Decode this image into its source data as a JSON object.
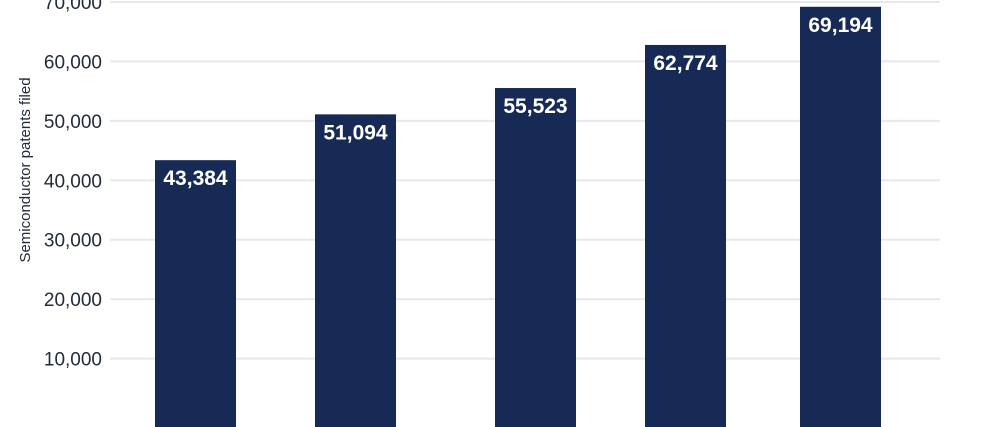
{
  "chart_data": {
    "type": "bar",
    "title": "",
    "xlabel": "",
    "ylabel": "Semiconductor patents filed",
    "categories": [
      "",
      "",
      "",
      "",
      ""
    ],
    "values": [
      43384,
      51094,
      55523,
      62774,
      69194
    ],
    "value_labels": [
      "43,384",
      "51,094",
      "55,523",
      "62,774",
      "69,194"
    ],
    "ylim": [
      0,
      70000
    ],
    "yticks": [
      10000,
      20000,
      30000,
      40000,
      50000,
      60000,
      70000
    ],
    "ytick_labels": [
      "10,000",
      "20,000",
      "30,000",
      "40,000",
      "50,000",
      "60,000",
      "70,000"
    ],
    "grid": true,
    "legend": "none",
    "colors": {
      "bar": "#162a55",
      "grid": "#e6e8ec",
      "text": "#222b3a",
      "label": "#ffffff"
    }
  }
}
